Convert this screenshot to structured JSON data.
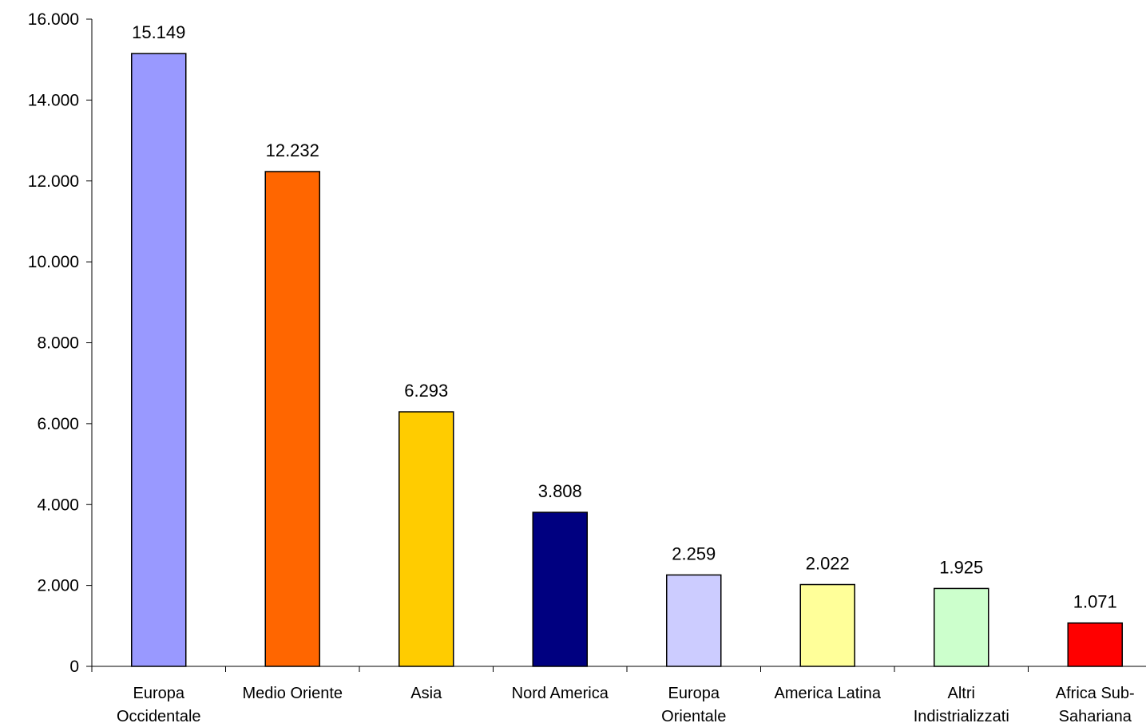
{
  "chart_data": {
    "type": "bar",
    "title": "",
    "xlabel": "",
    "ylabel": "",
    "ylim": [
      0,
      16000
    ],
    "yticks": [
      0,
      2000,
      4000,
      6000,
      8000,
      10000,
      12000,
      14000,
      16000
    ],
    "ytick_labels": [
      "0",
      "2.000",
      "4.000",
      "6.000",
      "8.000",
      "10.000",
      "12.000",
      "14.000",
      "16.000"
    ],
    "grid": false,
    "legend": "none",
    "categories": [
      [
        "Europa",
        "Occidentale"
      ],
      [
        "Medio Oriente"
      ],
      [
        "Asia"
      ],
      [
        "Nord America"
      ],
      [
        "Europa",
        "Orientale"
      ],
      [
        "America Latina"
      ],
      [
        "Altri",
        "Indistrializzati"
      ],
      [
        "Africa Sub-",
        "Sahariana"
      ]
    ],
    "values": [
      15149,
      12232,
      6293,
      3808,
      2259,
      2022,
      1925,
      1071
    ],
    "value_labels": [
      "15.149",
      "12.232",
      "6.293",
      "3.808",
      "2.259",
      "2.022",
      "1.925",
      "1.071"
    ],
    "colors": [
      "#9999FF",
      "#FF6600",
      "#FFCC00",
      "#000080",
      "#CCCCFF",
      "#FFFF99",
      "#CCFFCC",
      "#FF0000"
    ]
  }
}
